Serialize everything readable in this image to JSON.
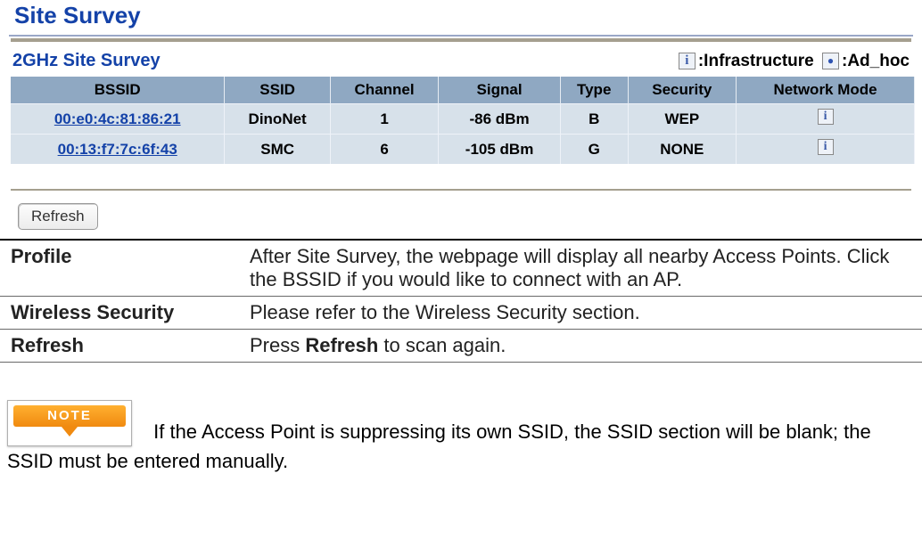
{
  "screenshot": {
    "title": "Site Survey",
    "subtitle": "2GHz Site Survey",
    "legend": {
      "infra": ":Infrastructure",
      "adhoc": ":Ad_hoc"
    },
    "columns": [
      "BSSID",
      "SSID",
      "Channel",
      "Signal",
      "Type",
      "Security",
      "Network Mode"
    ],
    "rows": [
      {
        "bssid": "00:e0:4c:81:86:21",
        "ssid": "DinoNet",
        "channel": "1",
        "signal": "-86 dBm",
        "type": "B",
        "security": "WEP"
      },
      {
        "bssid": "00:13:f7:7c:6f:43",
        "ssid": "SMC",
        "channel": "6",
        "signal": "-105 dBm",
        "type": "G",
        "security": "NONE"
      }
    ],
    "refresh_label": "Refresh"
  },
  "defs": [
    {
      "k": "Profile",
      "v": "After Site Survey, the webpage will display all nearby Access Points. Click the BSSID if you would like to connect with an AP."
    },
    {
      "k": "Wireless Security",
      "v": "Please refer to the Wireless Security section."
    },
    {
      "k": "Refresh",
      "v_pre": "Press ",
      "v_bold": "Refresh",
      "v_post": " to scan again."
    }
  ],
  "note": {
    "badge": "NOTE",
    "text_a": "If the Access Point is suppressing its own SSID, the SSID section will be blank; the SSID must be entered manually."
  }
}
